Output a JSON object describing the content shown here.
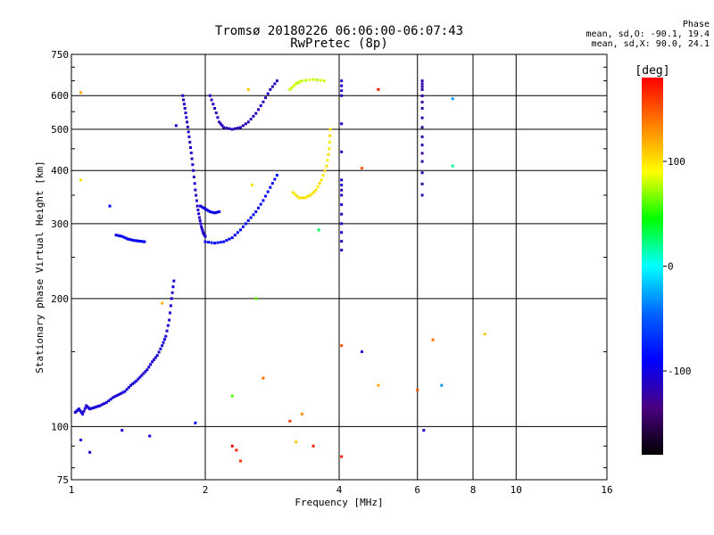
{
  "header": {
    "title_line1": "Tromsø 20180226 06:06:00-06:07:43",
    "title_line2": "RwPretec (8p)"
  },
  "phase_box": {
    "label": "Phase",
    "line_o": "mean, sd,O: -90.1, 19.4",
    "line_x": "mean, sd,X:  90.0, 24.1"
  },
  "colors": {
    "scale": [
      "#000000",
      "#4b0082",
      "#0000ff",
      "#0064ff",
      "#00ffff",
      "#00ff00",
      "#ffff00",
      "#ff8000",
      "#ff0000"
    ]
  },
  "chart_data": {
    "type": "scatter",
    "title": "Tromsø 20180226 06:06:00-06:07:43",
    "subtitle": "RwPretec (8p)",
    "xlabel": "Frequency [MHz]",
    "ylabel": "Stationary phase Virtual Height [km]",
    "x_scale": "log",
    "y_scale": "log",
    "xlim": [
      1,
      16
    ],
    "ylim": [
      75,
      750
    ],
    "x_ticks": [
      1,
      2,
      4,
      6,
      8,
      10,
      16
    ],
    "y_ticks": [
      75,
      100,
      200,
      300,
      400,
      500,
      600,
      750
    ],
    "grid": true,
    "colorbar": {
      "label": "[deg]",
      "range": [
        -180,
        180
      ],
      "ticks": [
        -100,
        0,
        100
      ]
    },
    "traces": [
      {
        "name": "",
        "phase": -105,
        "points": [
          [
            1.02,
            108
          ],
          [
            1.04,
            110
          ],
          [
            1.06,
            107
          ],
          [
            1.08,
            112
          ],
          [
            1.1,
            110
          ],
          [
            1.13,
            111
          ],
          [
            1.16,
            112
          ],
          [
            1.2,
            114
          ],
          [
            1.24,
            117
          ],
          [
            1.28,
            119
          ],
          [
            1.32,
            121
          ],
          [
            1.36,
            125
          ],
          [
            1.4,
            128
          ],
          [
            1.44,
            132
          ],
          [
            1.48,
            136
          ],
          [
            1.52,
            142
          ],
          [
            1.56,
            147
          ],
          [
            1.6,
            155
          ],
          [
            1.63,
            163
          ],
          [
            1.66,
            178
          ],
          [
            1.68,
            200
          ],
          [
            1.7,
            220
          ]
        ]
      },
      {
        "name": "",
        "phase": -95,
        "points": [
          [
            1.26,
            282
          ],
          [
            1.3,
            280
          ],
          [
            1.34,
            276
          ],
          [
            1.38,
            274
          ],
          [
            1.42,
            273
          ],
          [
            1.46,
            272
          ]
        ]
      },
      {
        "name": "",
        "phase": -110,
        "points": [
          [
            1.78,
            600
          ],
          [
            1.8,
            560
          ],
          [
            1.82,
            520
          ],
          [
            1.84,
            480
          ],
          [
            1.86,
            440
          ],
          [
            1.88,
            400
          ],
          [
            1.9,
            360
          ],
          [
            1.92,
            330
          ],
          [
            1.94,
            310
          ],
          [
            1.96,
            295
          ],
          [
            1.98,
            285
          ],
          [
            2.0,
            280
          ]
        ]
      },
      {
        "name": "",
        "phase": -90,
        "points": [
          [
            2.0,
            272
          ],
          [
            2.1,
            270
          ],
          [
            2.2,
            272
          ],
          [
            2.3,
            278
          ],
          [
            2.4,
            290
          ],
          [
            2.5,
            305
          ],
          [
            2.6,
            320
          ],
          [
            2.7,
            340
          ],
          [
            2.8,
            365
          ],
          [
            2.9,
            390
          ]
        ]
      },
      {
        "name": "",
        "phase": -115,
        "points": [
          [
            2.05,
            600
          ],
          [
            2.1,
            560
          ],
          [
            2.15,
            520
          ],
          [
            2.2,
            505
          ],
          [
            2.3,
            500
          ],
          [
            2.4,
            505
          ],
          [
            2.5,
            520
          ],
          [
            2.6,
            545
          ],
          [
            2.7,
            580
          ],
          [
            2.8,
            620
          ],
          [
            2.9,
            650
          ]
        ]
      },
      {
        "name": "",
        "phase": -100,
        "points": [
          [
            1.95,
            330
          ],
          [
            2.0,
            325
          ],
          [
            2.05,
            320
          ],
          [
            2.1,
            318
          ],
          [
            2.15,
            320
          ]
        ]
      },
      {
        "name": "",
        "phase": 100,
        "points": [
          [
            3.15,
            355
          ],
          [
            3.25,
            345
          ],
          [
            3.35,
            345
          ],
          [
            3.45,
            350
          ],
          [
            3.55,
            360
          ],
          [
            3.65,
            380
          ],
          [
            3.75,
            410
          ],
          [
            3.8,
            450
          ],
          [
            3.82,
            500
          ]
        ]
      },
      {
        "name": "",
        "phase": 80,
        "points": [
          [
            3.1,
            620
          ],
          [
            3.2,
            640
          ],
          [
            3.3,
            650
          ],
          [
            3.5,
            655
          ],
          [
            3.7,
            650
          ]
        ]
      },
      {
        "name": "",
        "phase": -110,
        "points": [
          [
            4.05,
            260
          ],
          [
            4.05,
            300
          ],
          [
            4.05,
            350
          ],
          [
            4.05,
            380
          ],
          [
            4.05,
            600
          ],
          [
            4.05,
            650
          ]
        ]
      },
      {
        "name": "",
        "phase": -120,
        "points": [
          [
            6.15,
            350
          ],
          [
            6.15,
            420
          ],
          [
            6.15,
            480
          ],
          [
            6.15,
            560
          ],
          [
            6.15,
            620
          ],
          [
            6.15,
            650
          ]
        ]
      }
    ],
    "scatter": [
      {
        "x": 1.05,
        "y": 380,
        "phase": 100
      },
      {
        "x": 1.05,
        "y": 610,
        "phase": 120
      },
      {
        "x": 1.22,
        "y": 330,
        "phase": -90
      },
      {
        "x": 1.6,
        "y": 195,
        "phase": 120
      },
      {
        "x": 1.3,
        "y": 98,
        "phase": -100
      },
      {
        "x": 1.05,
        "y": 93,
        "phase": -110
      },
      {
        "x": 1.1,
        "y": 87,
        "phase": -110
      },
      {
        "x": 1.5,
        "y": 95,
        "phase": -100
      },
      {
        "x": 1.9,
        "y": 102,
        "phase": -90
      },
      {
        "x": 2.3,
        "y": 90,
        "phase": 180
      },
      {
        "x": 2.35,
        "y": 88,
        "phase": 170
      },
      {
        "x": 2.4,
        "y": 83,
        "phase": 160
      },
      {
        "x": 3.2,
        "y": 92,
        "phase": 110
      },
      {
        "x": 3.5,
        "y": 90,
        "phase": 170
      },
      {
        "x": 3.1,
        "y": 103,
        "phase": 160
      },
      {
        "x": 3.3,
        "y": 107,
        "phase": 130
      },
      {
        "x": 2.6,
        "y": 200,
        "phase": 60
      },
      {
        "x": 2.3,
        "y": 118,
        "phase": 60
      },
      {
        "x": 2.7,
        "y": 130,
        "phase": 140
      },
      {
        "x": 4.05,
        "y": 85,
        "phase": 170
      },
      {
        "x": 4.05,
        "y": 155,
        "phase": 150
      },
      {
        "x": 4.5,
        "y": 150,
        "phase": -110
      },
      {
        "x": 4.5,
        "y": 405,
        "phase": 150
      },
      {
        "x": 4.9,
        "y": 125,
        "phase": 120
      },
      {
        "x": 4.9,
        "y": 620,
        "phase": 170
      },
      {
        "x": 6.0,
        "y": 122,
        "phase": 150
      },
      {
        "x": 6.2,
        "y": 98,
        "phase": -110
      },
      {
        "x": 6.8,
        "y": 125,
        "phase": -30
      },
      {
        "x": 7.2,
        "y": 590,
        "phase": -30
      },
      {
        "x": 7.2,
        "y": 410,
        "phase": 20
      },
      {
        "x": 8.5,
        "y": 165,
        "phase": 110
      },
      {
        "x": 6.5,
        "y": 160,
        "phase": 140
      },
      {
        "x": 2.5,
        "y": 620,
        "phase": 110
      },
      {
        "x": 1.72,
        "y": 510,
        "phase": -110
      },
      {
        "x": 2.55,
        "y": 370,
        "phase": 100
      },
      {
        "x": 3.6,
        "y": 290,
        "phase": 30
      }
    ]
  }
}
